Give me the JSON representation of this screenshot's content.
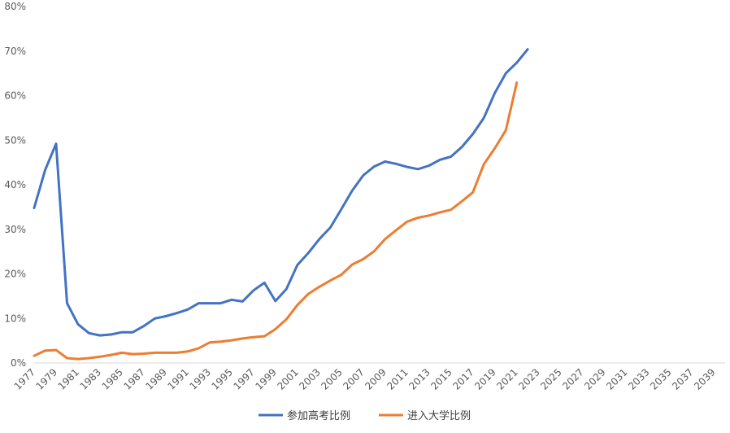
{
  "chart_data": {
    "type": "line",
    "title": "",
    "xlabel": "",
    "ylabel": "",
    "x_ticks": [
      "1977",
      "1979",
      "1981",
      "1983",
      "1985",
      "1987",
      "1989",
      "1991",
      "1993",
      "1995",
      "1997",
      "1999",
      "2001",
      "2003",
      "2005",
      "2007",
      "2009",
      "2011",
      "2013",
      "2015",
      "2017",
      "2019",
      "2021",
      "2023",
      "2025",
      "2027",
      "2029",
      "2031",
      "2033",
      "2035",
      "2037",
      "2039"
    ],
    "y_ticks": [
      "0%",
      "10%",
      "20%",
      "30%",
      "40%",
      "50%",
      "60%",
      "70%",
      "80%"
    ],
    "ylim": [
      0,
      80
    ],
    "xlim": [
      1977,
      2040
    ],
    "legend_position": "bottom",
    "grid": false,
    "series": [
      {
        "name": "参加高考比例",
        "color": "#4472C4",
        "x": [
          1977,
          1978,
          1979,
          1980,
          1981,
          1982,
          1983,
          1984,
          1985,
          1986,
          1987,
          1988,
          1989,
          1990,
          1991,
          1992,
          1993,
          1994,
          1995,
          1996,
          1997,
          1998,
          1999,
          2000,
          2001,
          2002,
          2003,
          2004,
          2005,
          2006,
          2007,
          2008,
          2009,
          2010,
          2011,
          2012,
          2013,
          2014,
          2015,
          2016,
          2017,
          2018,
          2019,
          2020,
          2021,
          2022
        ],
        "values": [
          34.8,
          43.3,
          49.2,
          13.4,
          8.7,
          6.7,
          6.2,
          6.4,
          6.9,
          6.9,
          8.3,
          10.0,
          10.5,
          11.2,
          12.0,
          13.4,
          13.4,
          13.4,
          14.2,
          13.8,
          16.3,
          18.0,
          13.9,
          16.6,
          22.0,
          24.7,
          27.8,
          30.4,
          34.5,
          38.7,
          42.1,
          44.1,
          45.2,
          44.7,
          44.0,
          43.5,
          44.3,
          45.6,
          46.3,
          48.5,
          51.4,
          55.0,
          60.6,
          65.0,
          67.4,
          70.4
        ]
      },
      {
        "name": "进入大学比例",
        "color": "#ED7D31",
        "x": [
          1977,
          1978,
          1979,
          1980,
          1981,
          1982,
          1983,
          1984,
          1985,
          1986,
          1987,
          1988,
          1989,
          1990,
          1991,
          1992,
          1993,
          1994,
          1995,
          1996,
          1997,
          1998,
          1999,
          2000,
          2001,
          2002,
          2003,
          2004,
          2005,
          2006,
          2007,
          2008,
          2009,
          2010,
          2011,
          2012,
          2013,
          2014,
          2015,
          2016,
          2017,
          2018,
          2019,
          2020,
          2021
        ],
        "values": [
          1.6,
          2.8,
          2.9,
          1.1,
          0.9,
          1.1,
          1.4,
          1.8,
          2.3,
          2.0,
          2.1,
          2.3,
          2.3,
          2.3,
          2.6,
          3.3,
          4.6,
          4.8,
          5.1,
          5.5,
          5.8,
          6.0,
          7.6,
          9.8,
          13.0,
          15.5,
          17.1,
          18.5,
          19.8,
          22.1,
          23.3,
          25.1,
          27.8,
          29.8,
          31.7,
          32.6,
          33.1,
          33.8,
          34.4,
          36.3,
          38.3,
          44.6,
          48.2,
          52.2,
          62.9
        ]
      }
    ]
  }
}
